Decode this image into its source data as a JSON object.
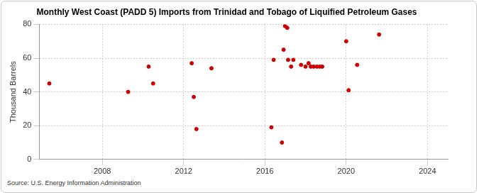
{
  "chart_data": {
    "type": "scatter",
    "title": "Monthly West Coast (PADD 5) Imports from Trinidad and Tobago of Liquified Petroleum Gases",
    "y_label": "Thousand Barrels",
    "source": "Source: U.S. Energy Information Administration",
    "x": [
      2005.39,
      2009.27,
      2010.28,
      2010.5,
      2012.4,
      2012.5,
      2012.63,
      2013.37,
      2016.32,
      2016.43,
      2016.84,
      2016.92,
      2016.99,
      2017.1,
      2017.14,
      2017.29,
      2017.4,
      2017.78,
      2018.0,
      2018.15,
      2018.26,
      2018.4,
      2018.56,
      2018.7,
      2018.82,
      2020.0,
      2020.12,
      2020.54,
      2021.62
    ],
    "values": [
      45,
      40,
      55,
      45,
      57,
      37,
      18,
      54,
      19,
      59,
      10,
      65,
      79,
      78,
      59,
      55,
      59,
      56,
      55,
      57,
      55,
      55,
      55,
      55,
      55,
      70,
      41,
      56,
      74
    ],
    "color": "#cc0000",
    "marker": "circle",
    "xlim": [
      2004.9,
      2025.0
    ],
    "xticks": [
      2008,
      2012,
      2016,
      2020,
      2024
    ],
    "ylim": [
      0,
      80
    ],
    "yticks": [
      0,
      20,
      40,
      60,
      80
    ],
    "grid": true
  }
}
